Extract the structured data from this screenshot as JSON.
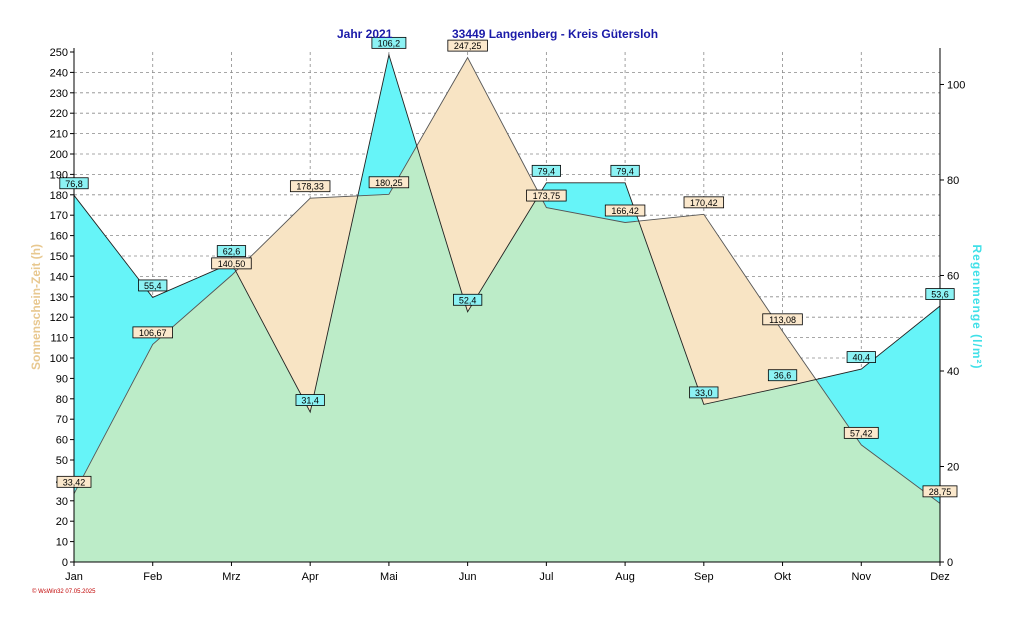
{
  "header": {
    "year_label": "Jahr  2021",
    "location": "33449 Langenberg - Kreis Gütersloh"
  },
  "footer": {
    "credit": "© WsWin32  07.05.2025"
  },
  "chart_data": {
    "type": "area",
    "categories": [
      "Jan",
      "Feb",
      "Mrz",
      "Apr",
      "Mai",
      "Jun",
      "Jul",
      "Aug",
      "Sep",
      "Okt",
      "Nov",
      "Dez"
    ],
    "series": [
      {
        "name": "Sonnenschein-Zeit",
        "axis": "left",
        "values": [
          33.42,
          106.67,
          140.5,
          178.33,
          180.25,
          247.25,
          173.75,
          166.42,
          170.42,
          113.08,
          57.42,
          28.75
        ],
        "labels": [
          "33,42",
          "106,67",
          "140,50",
          "178,33",
          "180,25",
          "247,25",
          "173,75",
          "166,42",
          "170,42",
          "113,08",
          "57,42",
          "28,75"
        ],
        "color": "#f8e4c4"
      },
      {
        "name": "Regenmenge",
        "axis": "right",
        "values": [
          76.8,
          55.4,
          62.6,
          31.4,
          106.2,
          52.4,
          79.4,
          79.4,
          33.0,
          36.6,
          40.4,
          53.6
        ],
        "labels": [
          "76,8",
          "55,4",
          "62,6",
          "31,4",
          "106,2",
          "52,4",
          "79,4",
          "79,4",
          "33,0",
          "36,6",
          "40,4",
          "53,6"
        ],
        "color": "#66f4f8"
      }
    ],
    "overlap_color": "#bcecc8",
    "y_left": {
      "label": "Sonnenschein-Zeit   (h)",
      "min": 0,
      "max": 250,
      "ticks": [
        "0",
        "10",
        "20",
        "30",
        "40",
        "50",
        "60",
        "70",
        "80",
        "90",
        "100",
        "110",
        "120",
        "130",
        "140",
        "150",
        "160",
        "170",
        "180",
        "190",
        "200",
        "210",
        "220",
        "230",
        "240",
        "250"
      ]
    },
    "y_right": {
      "label": "Regenmenge   (l/m²)",
      "min": 0,
      "max": 106.8,
      "ticks": [
        "0",
        "20",
        "40",
        "60",
        "80",
        "100"
      ]
    },
    "grid": true
  }
}
